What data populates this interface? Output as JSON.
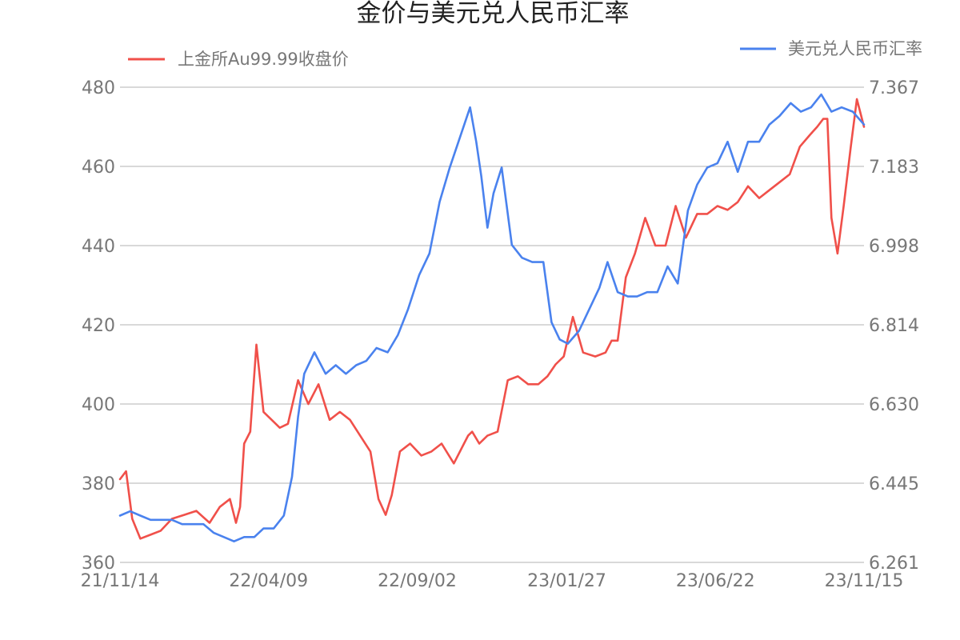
{
  "chart_data": {
    "type": "line",
    "title": "金价与美元兑人民币汇率",
    "x_tick_labels": [
      "21/11/14",
      "22/04/09",
      "22/09/02",
      "23/01/27",
      "23/06/22",
      "23/11/15"
    ],
    "y_left": {
      "ylim": [
        360,
        480
      ],
      "ticks": [
        "360",
        "380",
        "400",
        "420",
        "440",
        "460",
        "480"
      ]
    },
    "y_right": {
      "ylim": [
        6.261,
        7.367
      ],
      "ticks": [
        "6.261",
        "6.445",
        "6.630",
        "6.814",
        "6.998",
        "7.183",
        "7.367"
      ]
    },
    "grid": true,
    "legend_placement": "top",
    "series": [
      {
        "name": "上金所Au99.99收盘价",
        "axis": "left",
        "color": "#f0504a",
        "x": [
          "21/11/14",
          "21/11/20",
          "21/11/26",
          "21/12/04",
          "21/12/14",
          "21/12/24",
          "22/01/04",
          "22/01/16",
          "22/01/28",
          "22/02/10",
          "22/02/20",
          "22/03/02",
          "22/03/08",
          "22/03/12",
          "22/03/16",
          "22/03/22",
          "22/03/28",
          "22/04/04",
          "22/04/12",
          "22/04/20",
          "22/04/28",
          "22/05/08",
          "22/05/18",
          "22/05/28",
          "22/06/08",
          "22/06/18",
          "22/06/28",
          "22/07/08",
          "22/07/18",
          "22/07/26",
          "22/08/02",
          "22/08/08",
          "22/08/16",
          "22/08/26",
          "22/09/06",
          "22/09/16",
          "22/09/26",
          "22/10/08",
          "22/10/18",
          "22/10/22",
          "22/10/26",
          "22/11/02",
          "22/11/10",
          "22/11/20",
          "22/11/30",
          "22/12/10",
          "22/12/20",
          "22/12/30",
          "23/01/08",
          "23/01/16",
          "23/01/24",
          "23/02/02",
          "23/02/12",
          "23/02/24",
          "23/03/06",
          "23/03/12",
          "23/03/18",
          "23/03/26",
          "23/04/04",
          "23/04/14",
          "23/04/24",
          "23/05/04",
          "23/05/14",
          "23/05/24",
          "23/06/04",
          "23/06/14",
          "23/06/24",
          "23/07/04",
          "23/07/14",
          "23/07/24",
          "23/08/04",
          "23/08/14",
          "23/08/24",
          "23/09/03",
          "23/09/13",
          "23/09/23",
          "23/09/30",
          "23/10/06",
          "23/10/10",
          "23/10/14",
          "23/10/20",
          "23/10/26",
          "23/11/02",
          "23/11/08",
          "23/11/15"
        ],
        "values": [
          381,
          383,
          371,
          366,
          367,
          368,
          371,
          372,
          373,
          370,
          374,
          376,
          370,
          374,
          390,
          393,
          415,
          398,
          396,
          394,
          395,
          406,
          400,
          405,
          396,
          398,
          396,
          392,
          388,
          376,
          372,
          377,
          388,
          390,
          387,
          388,
          390,
          385,
          390,
          392,
          393,
          390,
          392,
          393,
          406,
          407,
          405,
          405,
          407,
          410,
          412,
          422,
          413,
          412,
          413,
          416,
          416,
          432,
          438,
          447,
          440,
          440,
          450,
          442,
          448,
          448,
          450,
          449,
          451,
          455,
          452,
          454,
          456,
          458,
          465,
          468,
          470,
          472,
          472,
          447,
          438,
          450,
          465,
          477,
          470
        ]
      },
      {
        "name": "美元兑人民币汇率",
        "axis": "right",
        "color": "#4a82ee",
        "x": [
          "21/11/14",
          "21/11/24",
          "21/12/04",
          "21/12/14",
          "21/12/24",
          "22/01/04",
          "22/01/14",
          "22/01/24",
          "22/02/04",
          "22/02/14",
          "22/02/24",
          "22/03/06",
          "22/03/16",
          "22/03/26",
          "22/04/04",
          "22/04/14",
          "22/04/24",
          "22/05/02",
          "22/05/08",
          "22/05/14",
          "22/05/24",
          "22/06/04",
          "22/06/14",
          "22/06/24",
          "22/07/04",
          "22/07/14",
          "22/07/24",
          "22/08/04",
          "22/08/14",
          "22/08/24",
          "22/09/04",
          "22/09/14",
          "22/09/24",
          "22/10/04",
          "22/10/14",
          "22/10/24",
          "22/10/30",
          "22/11/04",
          "22/11/10",
          "22/11/16",
          "22/11/24",
          "22/12/04",
          "22/12/14",
          "22/12/24",
          "23/01/04",
          "23/01/12",
          "23/01/20",
          "23/01/28",
          "23/02/08",
          "23/02/18",
          "23/02/28",
          "23/03/08",
          "23/03/18",
          "23/03/28",
          "23/04/06",
          "23/04/16",
          "23/04/26",
          "23/05/06",
          "23/05/16",
          "23/05/26",
          "23/06/04",
          "23/06/14",
          "23/06/24",
          "23/07/04",
          "23/07/14",
          "23/07/24",
          "23/08/04",
          "23/08/14",
          "23/08/24",
          "23/09/04",
          "23/09/14",
          "23/09/24",
          "23/10/04",
          "23/10/14",
          "23/10/24",
          "23/11/04",
          "23/11/15"
        ],
        "values": [
          6.37,
          6.38,
          6.37,
          6.36,
          6.36,
          6.36,
          6.35,
          6.35,
          6.35,
          6.33,
          6.32,
          6.31,
          6.32,
          6.32,
          6.34,
          6.34,
          6.37,
          6.46,
          6.6,
          6.7,
          6.75,
          6.7,
          6.72,
          6.7,
          6.72,
          6.73,
          6.76,
          6.75,
          6.79,
          6.85,
          6.93,
          6.98,
          7.1,
          7.18,
          7.25,
          7.32,
          7.24,
          7.16,
          7.04,
          7.12,
          7.18,
          7.0,
          6.97,
          6.96,
          6.96,
          6.82,
          6.78,
          6.77,
          6.8,
          6.85,
          6.9,
          6.96,
          6.89,
          6.88,
          6.88,
          6.89,
          6.89,
          6.95,
          6.91,
          7.08,
          7.14,
          7.18,
          7.19,
          7.24,
          7.17,
          7.24,
          7.24,
          7.28,
          7.3,
          7.33,
          7.31,
          7.32,
          7.35,
          7.31,
          7.32,
          7.31,
          7.28
        ]
      }
    ]
  }
}
